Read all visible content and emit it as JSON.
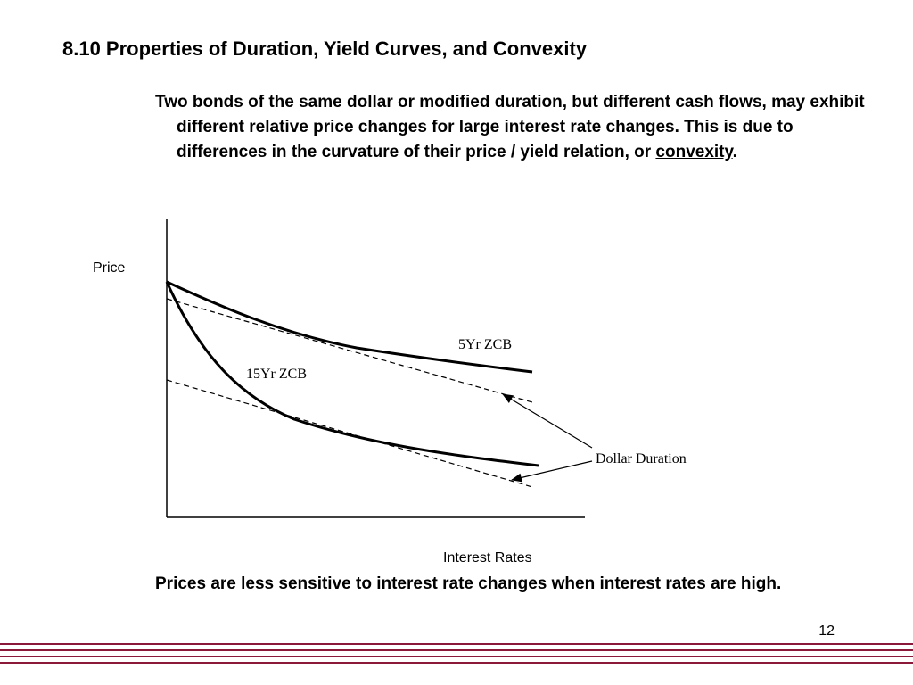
{
  "slide": {
    "title": "8.10 Properties of Duration, Yield Curves, and Convexity",
    "intro_text_before": "Two bonds of the same dollar or modified duration, but different cash flows, may exhibit different relative price changes for large interest rate changes.  This is due to differences in the curvature of their price / yield relation, or ",
    "intro_text_emphasis": "convexity",
    "intro_text_after": ".",
    "conclusion_text": "Prices are less sensitive to interest rate changes when interest rates are high.",
    "page_number": "12"
  },
  "diagram": {
    "y_axis_label": "Price",
    "x_axis_label": "Interest Rates",
    "curves": [
      {
        "label": "5Yr ZCB"
      },
      {
        "label": "15Yr ZCB"
      }
    ],
    "tangent_label": "Dollar Duration"
  },
  "colors": {
    "text": "#000000",
    "rule": "#8b1a3a",
    "background": "#ffffff"
  }
}
